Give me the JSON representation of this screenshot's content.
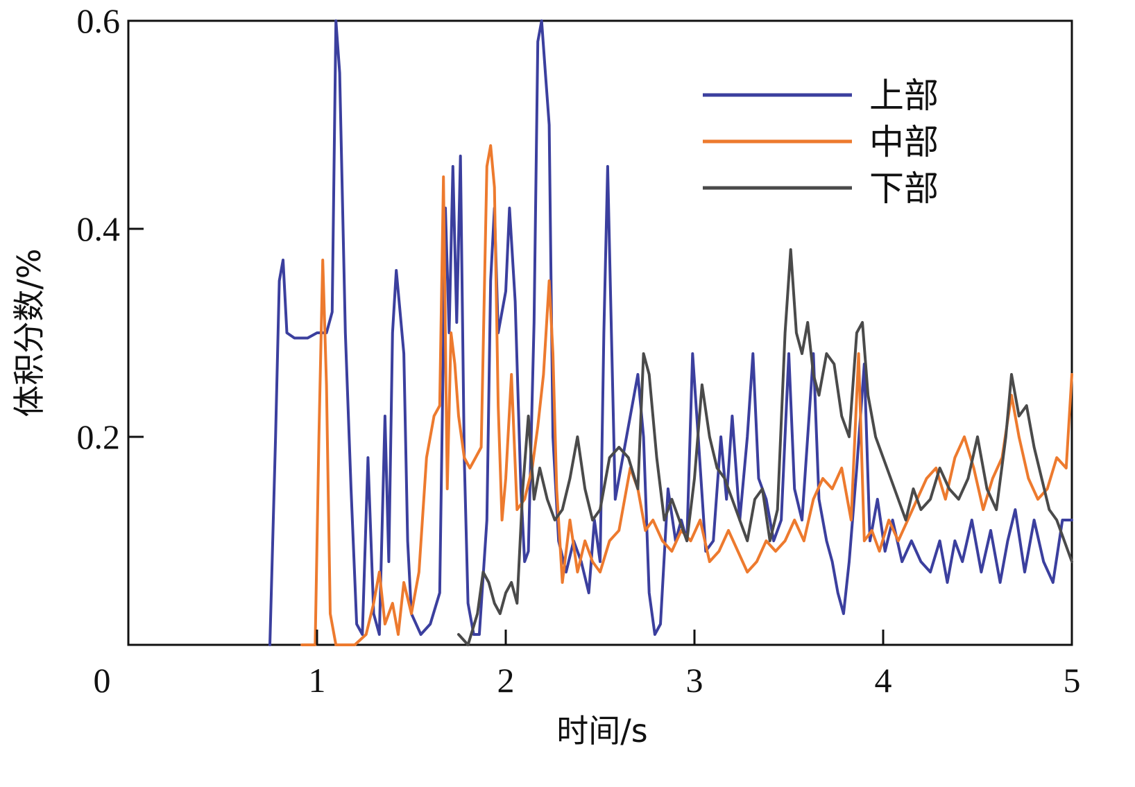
{
  "chart_data": {
    "type": "line",
    "title": "",
    "xlabel": "时间/s",
    "ylabel": "体积分数/%",
    "xlim": [
      0,
      5
    ],
    "ylim": [
      0,
      0.6
    ],
    "x_ticks": [
      "0",
      "1",
      "2",
      "3",
      "4",
      "5"
    ],
    "y_ticks": [
      "0.2",
      "0.4",
      "0.6"
    ],
    "grid": false,
    "legend_position": "top-right",
    "series": [
      {
        "name": "上部",
        "color": "#3b3f9e",
        "points": [
          [
            0.75,
            0.0
          ],
          [
            0.78,
            0.2
          ],
          [
            0.8,
            0.35
          ],
          [
            0.82,
            0.37
          ],
          [
            0.84,
            0.3
          ],
          [
            0.88,
            0.295
          ],
          [
            0.95,
            0.295
          ],
          [
            1.0,
            0.3
          ],
          [
            1.05,
            0.3
          ],
          [
            1.08,
            0.32
          ],
          [
            1.1,
            0.6
          ],
          [
            1.12,
            0.55
          ],
          [
            1.15,
            0.3
          ],
          [
            1.18,
            0.15
          ],
          [
            1.21,
            0.02
          ],
          [
            1.24,
            0.01
          ],
          [
            1.27,
            0.18
          ],
          [
            1.3,
            0.03
          ],
          [
            1.33,
            0.01
          ],
          [
            1.36,
            0.22
          ],
          [
            1.38,
            0.08
          ],
          [
            1.4,
            0.3
          ],
          [
            1.42,
            0.36
          ],
          [
            1.44,
            0.32
          ],
          [
            1.46,
            0.28
          ],
          [
            1.48,
            0.1
          ],
          [
            1.5,
            0.03
          ],
          [
            1.55,
            0.01
          ],
          [
            1.6,
            0.02
          ],
          [
            1.65,
            0.05
          ],
          [
            1.68,
            0.42
          ],
          [
            1.7,
            0.3
          ],
          [
            1.72,
            0.46
          ],
          [
            1.74,
            0.31
          ],
          [
            1.76,
            0.47
          ],
          [
            1.78,
            0.18
          ],
          [
            1.8,
            0.04
          ],
          [
            1.83,
            0.01
          ],
          [
            1.86,
            0.01
          ],
          [
            1.9,
            0.12
          ],
          [
            1.92,
            0.35
          ],
          [
            1.94,
            0.42
          ],
          [
            1.96,
            0.3
          ],
          [
            2.0,
            0.34
          ],
          [
            2.02,
            0.42
          ],
          [
            2.05,
            0.33
          ],
          [
            2.08,
            0.15
          ],
          [
            2.1,
            0.08
          ],
          [
            2.12,
            0.09
          ],
          [
            2.15,
            0.31
          ],
          [
            2.17,
            0.58
          ],
          [
            2.19,
            0.6
          ],
          [
            2.21,
            0.55
          ],
          [
            2.23,
            0.5
          ],
          [
            2.25,
            0.2
          ],
          [
            2.28,
            0.1
          ],
          [
            2.32,
            0.07
          ],
          [
            2.36,
            0.1
          ],
          [
            2.4,
            0.08
          ],
          [
            2.44,
            0.05
          ],
          [
            2.47,
            0.12
          ],
          [
            2.5,
            0.08
          ],
          [
            2.52,
            0.3
          ],
          [
            2.54,
            0.46
          ],
          [
            2.56,
            0.3
          ],
          [
            2.58,
            0.14
          ],
          [
            2.62,
            0.18
          ],
          [
            2.66,
            0.22
          ],
          [
            2.7,
            0.26
          ],
          [
            2.73,
            0.2
          ],
          [
            2.76,
            0.05
          ],
          [
            2.79,
            0.01
          ],
          [
            2.82,
            0.02
          ],
          [
            2.86,
            0.15
          ],
          [
            2.9,
            0.1
          ],
          [
            2.93,
            0.12
          ],
          [
            2.96,
            0.1
          ],
          [
            2.99,
            0.28
          ],
          [
            3.02,
            0.2
          ],
          [
            3.06,
            0.09
          ],
          [
            3.1,
            0.1
          ],
          [
            3.14,
            0.2
          ],
          [
            3.17,
            0.14
          ],
          [
            3.2,
            0.22
          ],
          [
            3.24,
            0.12
          ],
          [
            3.28,
            0.2
          ],
          [
            3.31,
            0.28
          ],
          [
            3.34,
            0.16
          ],
          [
            3.38,
            0.14
          ],
          [
            3.42,
            0.1
          ],
          [
            3.46,
            0.12
          ],
          [
            3.5,
            0.28
          ],
          [
            3.53,
            0.15
          ],
          [
            3.57,
            0.12
          ],
          [
            3.6,
            0.2
          ],
          [
            3.63,
            0.28
          ],
          [
            3.66,
            0.14
          ],
          [
            3.7,
            0.1
          ],
          [
            3.73,
            0.08
          ],
          [
            3.76,
            0.05
          ],
          [
            3.79,
            0.03
          ],
          [
            3.82,
            0.08
          ],
          [
            3.86,
            0.17
          ],
          [
            3.9,
            0.27
          ],
          [
            3.93,
            0.1
          ],
          [
            3.97,
            0.14
          ],
          [
            4.01,
            0.09
          ],
          [
            4.05,
            0.12
          ],
          [
            4.1,
            0.08
          ],
          [
            4.15,
            0.1
          ],
          [
            4.2,
            0.08
          ],
          [
            4.25,
            0.07
          ],
          [
            4.3,
            0.1
          ],
          [
            4.34,
            0.06
          ],
          [
            4.38,
            0.1
          ],
          [
            4.42,
            0.08
          ],
          [
            4.47,
            0.12
          ],
          [
            4.52,
            0.07
          ],
          [
            4.57,
            0.11
          ],
          [
            4.62,
            0.06
          ],
          [
            4.66,
            0.1
          ],
          [
            4.7,
            0.13
          ],
          [
            4.75,
            0.07
          ],
          [
            4.8,
            0.12
          ],
          [
            4.85,
            0.08
          ],
          [
            4.9,
            0.06
          ],
          [
            4.95,
            0.12
          ],
          [
            5.0,
            0.12
          ]
        ]
      },
      {
        "name": "中部",
        "color": "#ed7a2e",
        "points": [
          [
            0.92,
            0.0
          ],
          [
            0.99,
            0.0
          ],
          [
            1.01,
            0.2
          ],
          [
            1.03,
            0.37
          ],
          [
            1.05,
            0.25
          ],
          [
            1.07,
            0.03
          ],
          [
            1.1,
            0.0
          ],
          [
            1.2,
            0.0
          ],
          [
            1.26,
            0.01
          ],
          [
            1.3,
            0.04
          ],
          [
            1.33,
            0.07
          ],
          [
            1.36,
            0.02
          ],
          [
            1.4,
            0.04
          ],
          [
            1.43,
            0.01
          ],
          [
            1.46,
            0.06
          ],
          [
            1.5,
            0.03
          ],
          [
            1.54,
            0.07
          ],
          [
            1.58,
            0.18
          ],
          [
            1.62,
            0.22
          ],
          [
            1.65,
            0.23
          ],
          [
            1.67,
            0.45
          ],
          [
            1.69,
            0.15
          ],
          [
            1.71,
            0.3
          ],
          [
            1.73,
            0.27
          ],
          [
            1.75,
            0.22
          ],
          [
            1.78,
            0.18
          ],
          [
            1.81,
            0.17
          ],
          [
            1.84,
            0.18
          ],
          [
            1.87,
            0.19
          ],
          [
            1.9,
            0.46
          ],
          [
            1.92,
            0.48
          ],
          [
            1.94,
            0.44
          ],
          [
            1.96,
            0.23
          ],
          [
            1.98,
            0.12
          ],
          [
            2.0,
            0.16
          ],
          [
            2.03,
            0.26
          ],
          [
            2.06,
            0.13
          ],
          [
            2.1,
            0.14
          ],
          [
            2.14,
            0.17
          ],
          [
            2.17,
            0.21
          ],
          [
            2.2,
            0.26
          ],
          [
            2.23,
            0.35
          ],
          [
            2.25,
            0.28
          ],
          [
            2.27,
            0.15
          ],
          [
            2.3,
            0.06
          ],
          [
            2.34,
            0.12
          ],
          [
            2.38,
            0.07
          ],
          [
            2.42,
            0.1
          ],
          [
            2.46,
            0.08
          ],
          [
            2.5,
            0.07
          ],
          [
            2.55,
            0.1
          ],
          [
            2.6,
            0.11
          ],
          [
            2.66,
            0.17
          ],
          [
            2.7,
            0.15
          ],
          [
            2.74,
            0.11
          ],
          [
            2.78,
            0.12
          ],
          [
            2.83,
            0.1
          ],
          [
            2.88,
            0.09
          ],
          [
            2.93,
            0.11
          ],
          [
            2.98,
            0.1
          ],
          [
            3.03,
            0.12
          ],
          [
            3.08,
            0.08
          ],
          [
            3.13,
            0.09
          ],
          [
            3.18,
            0.11
          ],
          [
            3.23,
            0.09
          ],
          [
            3.28,
            0.07
          ],
          [
            3.33,
            0.08
          ],
          [
            3.38,
            0.1
          ],
          [
            3.43,
            0.09
          ],
          [
            3.48,
            0.1
          ],
          [
            3.53,
            0.12
          ],
          [
            3.58,
            0.1
          ],
          [
            3.63,
            0.14
          ],
          [
            3.68,
            0.16
          ],
          [
            3.73,
            0.15
          ],
          [
            3.78,
            0.17
          ],
          [
            3.83,
            0.12
          ],
          [
            3.87,
            0.28
          ],
          [
            3.9,
            0.1
          ],
          [
            3.94,
            0.11
          ],
          [
            3.98,
            0.09
          ],
          [
            4.03,
            0.12
          ],
          [
            4.08,
            0.1
          ],
          [
            4.13,
            0.12
          ],
          [
            4.18,
            0.14
          ],
          [
            4.23,
            0.16
          ],
          [
            4.28,
            0.17
          ],
          [
            4.33,
            0.14
          ],
          [
            4.38,
            0.18
          ],
          [
            4.43,
            0.2
          ],
          [
            4.48,
            0.17
          ],
          [
            4.53,
            0.13
          ],
          [
            4.58,
            0.16
          ],
          [
            4.63,
            0.18
          ],
          [
            4.68,
            0.24
          ],
          [
            4.72,
            0.2
          ],
          [
            4.77,
            0.16
          ],
          [
            4.82,
            0.14
          ],
          [
            4.87,
            0.15
          ],
          [
            4.92,
            0.18
          ],
          [
            4.97,
            0.17
          ],
          [
            5.0,
            0.26
          ]
        ]
      },
      {
        "name": "下部",
        "color": "#4a4a4a",
        "points": [
          [
            1.75,
            0.01
          ],
          [
            1.8,
            0.0
          ],
          [
            1.85,
            0.03
          ],
          [
            1.88,
            0.07
          ],
          [
            1.91,
            0.06
          ],
          [
            1.94,
            0.04
          ],
          [
            1.97,
            0.03
          ],
          [
            2.0,
            0.05
          ],
          [
            2.03,
            0.06
          ],
          [
            2.06,
            0.04
          ],
          [
            2.09,
            0.15
          ],
          [
            2.12,
            0.22
          ],
          [
            2.15,
            0.14
          ],
          [
            2.18,
            0.17
          ],
          [
            2.22,
            0.14
          ],
          [
            2.26,
            0.12
          ],
          [
            2.3,
            0.13
          ],
          [
            2.34,
            0.16
          ],
          [
            2.38,
            0.2
          ],
          [
            2.42,
            0.15
          ],
          [
            2.46,
            0.12
          ],
          [
            2.5,
            0.13
          ],
          [
            2.55,
            0.18
          ],
          [
            2.6,
            0.19
          ],
          [
            2.65,
            0.18
          ],
          [
            2.7,
            0.15
          ],
          [
            2.73,
            0.28
          ],
          [
            2.76,
            0.26
          ],
          [
            2.8,
            0.18
          ],
          [
            2.84,
            0.12
          ],
          [
            2.88,
            0.14
          ],
          [
            2.92,
            0.12
          ],
          [
            2.96,
            0.1
          ],
          [
            3.0,
            0.16
          ],
          [
            3.04,
            0.25
          ],
          [
            3.08,
            0.2
          ],
          [
            3.12,
            0.17
          ],
          [
            3.16,
            0.16
          ],
          [
            3.2,
            0.14
          ],
          [
            3.24,
            0.12
          ],
          [
            3.28,
            0.1
          ],
          [
            3.32,
            0.14
          ],
          [
            3.36,
            0.15
          ],
          [
            3.4,
            0.1
          ],
          [
            3.44,
            0.13
          ],
          [
            3.48,
            0.3
          ],
          [
            3.51,
            0.38
          ],
          [
            3.54,
            0.3
          ],
          [
            3.57,
            0.28
          ],
          [
            3.6,
            0.31
          ],
          [
            3.63,
            0.26
          ],
          [
            3.66,
            0.24
          ],
          [
            3.7,
            0.28
          ],
          [
            3.74,
            0.27
          ],
          [
            3.78,
            0.22
          ],
          [
            3.82,
            0.2
          ],
          [
            3.86,
            0.3
          ],
          [
            3.89,
            0.31
          ],
          [
            3.92,
            0.24
          ],
          [
            3.96,
            0.2
          ],
          [
            4.0,
            0.18
          ],
          [
            4.04,
            0.16
          ],
          [
            4.08,
            0.14
          ],
          [
            4.12,
            0.12
          ],
          [
            4.16,
            0.15
          ],
          [
            4.2,
            0.13
          ],
          [
            4.25,
            0.14
          ],
          [
            4.3,
            0.17
          ],
          [
            4.35,
            0.15
          ],
          [
            4.4,
            0.14
          ],
          [
            4.45,
            0.16
          ],
          [
            4.5,
            0.2
          ],
          [
            4.55,
            0.15
          ],
          [
            4.6,
            0.13
          ],
          [
            4.65,
            0.2
          ],
          [
            4.68,
            0.26
          ],
          [
            4.72,
            0.22
          ],
          [
            4.76,
            0.23
          ],
          [
            4.8,
            0.19
          ],
          [
            4.84,
            0.16
          ],
          [
            4.88,
            0.13
          ],
          [
            4.92,
            0.12
          ],
          [
            4.96,
            0.1
          ],
          [
            5.0,
            0.08
          ]
        ]
      }
    ]
  }
}
